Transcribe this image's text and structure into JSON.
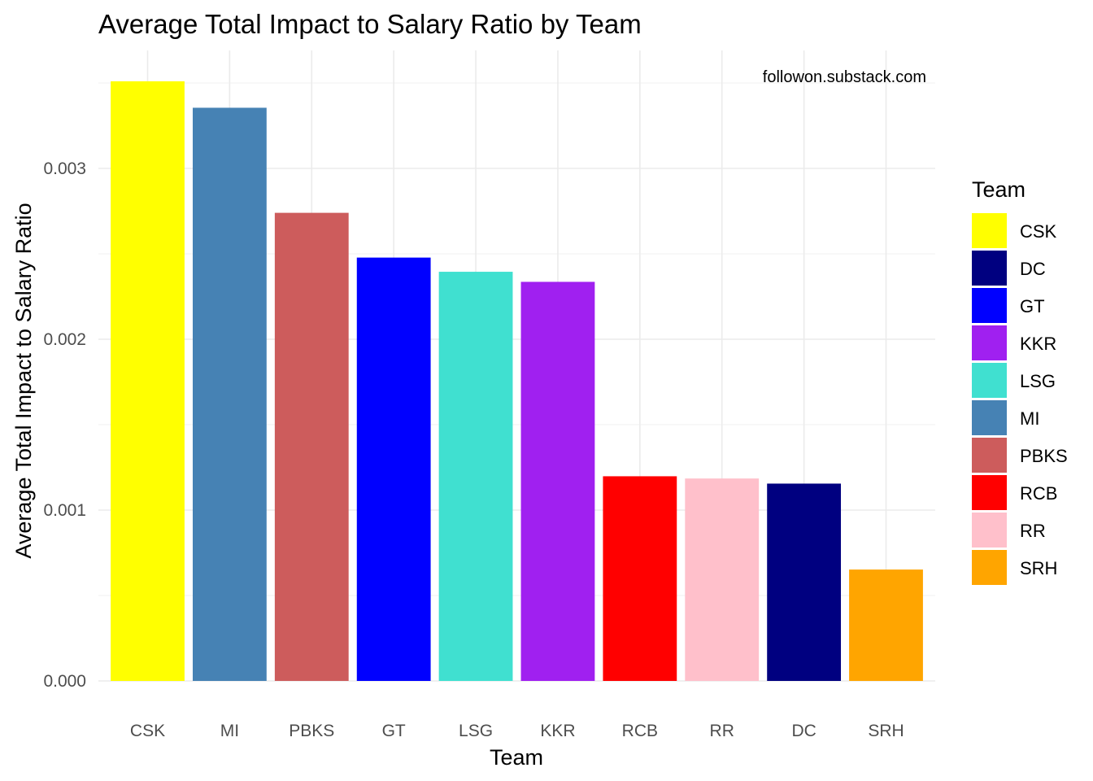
{
  "chart_data": {
    "type": "bar",
    "title": "Average Total Impact to Salary Ratio by Team",
    "xlabel": "Team",
    "ylabel": "Average Total Impact to Salary Ratio",
    "annotation": "followon.substack.com",
    "categories": [
      "CSK",
      "MI",
      "PBKS",
      "GT",
      "LSG",
      "KKR",
      "RCB",
      "RR",
      "DC",
      "SRH"
    ],
    "values": [
      0.00351,
      0.003355,
      0.00274,
      0.002478,
      0.002395,
      0.002336,
      0.001198,
      0.001185,
      0.001155,
      0.000652
    ],
    "ylim": [
      0,
      0.0035
    ],
    "y_ticks": [
      {
        "value": 0.0,
        "label": "0.000"
      },
      {
        "value": 0.001,
        "label": "0.001"
      },
      {
        "value": 0.002,
        "label": "0.002"
      },
      {
        "value": 0.003,
        "label": "0.003"
      }
    ],
    "colors": {
      "CSK": "#FFFF00",
      "MI": "#4682B4",
      "PBKS": "#CD5C5C",
      "GT": "#0000FF",
      "LSG": "#40E0D0",
      "KKR": "#A020F0",
      "RCB": "#FF0000",
      "RR": "#FFC0CB",
      "DC": "#000080",
      "SRH": "#FFA500"
    },
    "legend": {
      "title": "Team",
      "position": "right",
      "entries": [
        "CSK",
        "DC",
        "GT",
        "KKR",
        "LSG",
        "MI",
        "PBKS",
        "RCB",
        "RR",
        "SRH"
      ]
    },
    "grid": true
  }
}
